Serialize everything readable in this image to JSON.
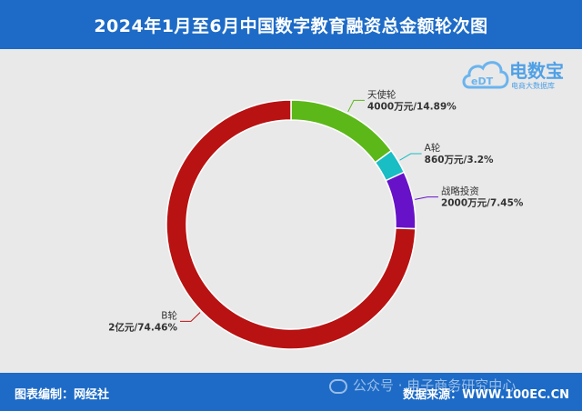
{
  "header": {
    "title": "2024年1月至6月中国数字教育融资总金额轮次图"
  },
  "logo": {
    "name": "电数宝",
    "subtitle": "电商大数据库",
    "mark": "eDT",
    "icon": "cloud-icon"
  },
  "footer": {
    "left": "图表编制：网经社",
    "right": "数据来源：WWW.100EC.CN",
    "watermark": "公众号 · 电子商务研究中心",
    "watermark_icon": "wechat-icon"
  },
  "colors": {
    "header_bg": "#1d6bc7",
    "background": "#e9e9e9"
  },
  "chart_data": {
    "type": "pie",
    "donut": true,
    "title": "",
    "slices": [
      {
        "name": "天使轮",
        "value": 14.89,
        "label": "4000万元/14.89%",
        "color": "#5cb819"
      },
      {
        "name": "A轮",
        "value": 3.2,
        "label": "860万元/3.2%",
        "color": "#19bdc4"
      },
      {
        "name": "战略投资",
        "value": 7.45,
        "label": "2000万元/7.45%",
        "color": "#6712c9"
      },
      {
        "name": "B轮",
        "value": 74.46,
        "label": "2亿元/74.46%",
        "color": "#b81212"
      }
    ]
  }
}
